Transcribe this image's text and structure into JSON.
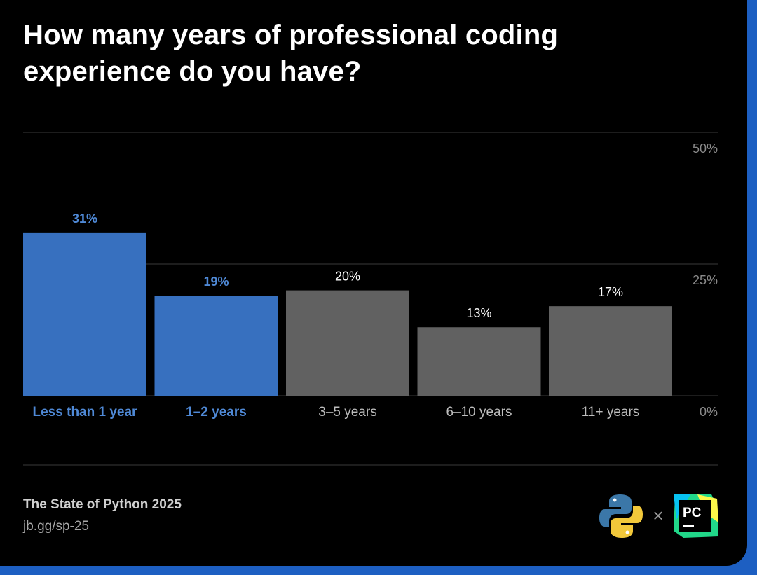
{
  "title": "How many years of professional coding experience do you have?",
  "footer": {
    "source": "The State of Python 2025",
    "link": "jb.gg/sp-25"
  },
  "logos": {
    "cross": "×",
    "pycharm_text": "PC"
  },
  "colors": {
    "highlight": "#3770bf",
    "highlight_text": "#4f89d6",
    "neutral": "#616161",
    "neutral_text": "#bdbdbd",
    "grid": "#3a3a3a",
    "background": "#000000"
  },
  "chart_data": {
    "type": "bar",
    "categories": [
      "Less than 1 year",
      "1–2 years",
      "3–5 years",
      "6–10 years",
      "11+ years"
    ],
    "values": [
      31,
      19,
      20,
      13,
      17
    ],
    "data_labels": [
      "31%",
      "19%",
      "20%",
      "13%",
      "17%"
    ],
    "highlighted": [
      true,
      true,
      false,
      false,
      false
    ],
    "ylim": [
      0,
      50
    ],
    "yticks": [
      0,
      25,
      50
    ],
    "ytick_labels": [
      "0%",
      "25%",
      "50%"
    ],
    "y_axis_side": "right",
    "grid": true
  }
}
